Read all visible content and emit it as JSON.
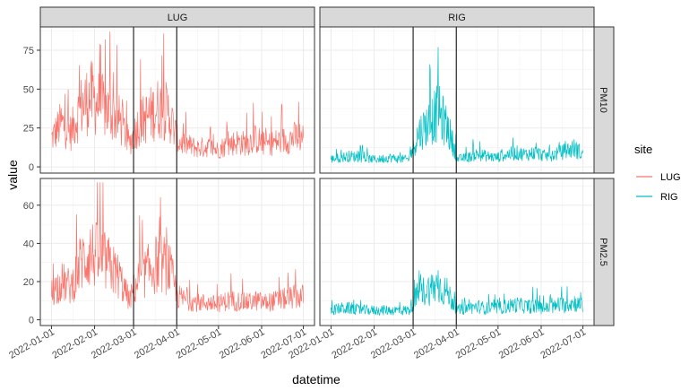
{
  "chart_data": {
    "type": "line",
    "layout": "facet_grid (rows: pollutant, cols: site)",
    "xlabel": "datetime",
    "ylabel": "value",
    "x_ticks": [
      "2022-01-01",
      "2022-02-01",
      "2022-03-01",
      "2022-04-01",
      "2022-05-01",
      "2022-06-01",
      "2022-07-01"
    ],
    "xlim": [
      "2021-12-24",
      "2022-07-09"
    ],
    "vertical_markers": [
      "2022-03-01",
      "2022-04-01"
    ],
    "column_strips": [
      "LUG",
      "RIG"
    ],
    "row_strips": [
      "PM10",
      "PM2.5"
    ],
    "legend": {
      "title": "site",
      "position": "right",
      "entries": [
        {
          "label": "LUG",
          "color": "#F8766D"
        },
        {
          "label": "RIG",
          "color": "#00BFC4"
        }
      ]
    },
    "rows": [
      {
        "name": "PM10",
        "ylim": [
          -4,
          90
        ],
        "yticks": [
          0,
          25,
          50,
          75
        ]
      },
      {
        "name": "PM2.5",
        "ylim": [
          -3,
          74
        ],
        "yticks": [
          0,
          20,
          40,
          60
        ]
      }
    ],
    "series": [
      {
        "name": "LUG",
        "facet": "PM10",
        "color": "#F8766D",
        "x": [
          "2022-01-01",
          "2022-01-08",
          "2022-01-15",
          "2022-01-22",
          "2022-01-29",
          "2022-02-05",
          "2022-02-12",
          "2022-02-19",
          "2022-02-26",
          "2022-03-05",
          "2022-03-12",
          "2022-03-19",
          "2022-03-26",
          "2022-04-02",
          "2022-04-09",
          "2022-04-16",
          "2022-04-23",
          "2022-04-30",
          "2022-05-07",
          "2022-05-14",
          "2022-05-21",
          "2022-05-28",
          "2022-06-04",
          "2022-06-11",
          "2022-06-18",
          "2022-06-25",
          "2022-07-01"
        ],
        "values": [
          18,
          28,
          22,
          38,
          45,
          40,
          35,
          30,
          15,
          28,
          33,
          38,
          35,
          16,
          14,
          12,
          13,
          11,
          14,
          16,
          15,
          18,
          14,
          16,
          17,
          19,
          20
        ],
        "peak": 87
      },
      {
        "name": "RIG",
        "facet": "PM10",
        "color": "#00BFC4",
        "x": [
          "2022-01-01",
          "2022-01-08",
          "2022-01-15",
          "2022-01-22",
          "2022-01-29",
          "2022-02-05",
          "2022-02-12",
          "2022-02-19",
          "2022-02-26",
          "2022-03-05",
          "2022-03-12",
          "2022-03-19",
          "2022-03-26",
          "2022-04-02",
          "2022-04-09",
          "2022-04-16",
          "2022-04-23",
          "2022-04-30",
          "2022-05-07",
          "2022-05-14",
          "2022-05-21",
          "2022-05-28",
          "2022-06-04",
          "2022-06-11",
          "2022-06-18",
          "2022-06-25",
          "2022-07-01"
        ],
        "values": [
          5,
          6,
          7,
          6,
          5,
          5,
          6,
          5,
          5,
          22,
          28,
          35,
          25,
          5,
          6,
          8,
          7,
          6,
          8,
          9,
          8,
          9,
          7,
          8,
          10,
          12,
          8
        ],
        "peak": 77
      },
      {
        "name": "LUG",
        "facet": "PM2.5",
        "color": "#F8766D",
        "x": [
          "2022-01-01",
          "2022-01-08",
          "2022-01-15",
          "2022-01-22",
          "2022-01-29",
          "2022-02-05",
          "2022-02-12",
          "2022-02-19",
          "2022-02-26",
          "2022-03-05",
          "2022-03-12",
          "2022-03-19",
          "2022-03-26",
          "2022-04-02",
          "2022-04-09",
          "2022-04-16",
          "2022-04-23",
          "2022-04-30",
          "2022-05-07",
          "2022-05-14",
          "2022-05-21",
          "2022-05-28",
          "2022-06-04",
          "2022-06-11",
          "2022-06-18",
          "2022-06-25",
          "2022-07-01"
        ],
        "values": [
          14,
          20,
          17,
          30,
          35,
          32,
          28,
          22,
          10,
          22,
          26,
          30,
          28,
          12,
          10,
          9,
          9,
          8,
          10,
          10,
          9,
          10,
          9,
          10,
          11,
          12,
          12
        ],
        "peak": 72
      },
      {
        "name": "RIG",
        "facet": "PM2.5",
        "color": "#00BFC4",
        "x": [
          "2022-01-01",
          "2022-01-08",
          "2022-01-15",
          "2022-01-22",
          "2022-01-29",
          "2022-02-05",
          "2022-02-12",
          "2022-02-19",
          "2022-02-26",
          "2022-03-05",
          "2022-03-12",
          "2022-03-19",
          "2022-03-26",
          "2022-04-02",
          "2022-04-09",
          "2022-04-16",
          "2022-04-23",
          "2022-04-30",
          "2022-05-07",
          "2022-05-14",
          "2022-05-21",
          "2022-05-28",
          "2022-06-04",
          "2022-06-11",
          "2022-06-18",
          "2022-06-25",
          "2022-07-01"
        ],
        "values": [
          5,
          6,
          6,
          5,
          5,
          5,
          5,
          5,
          5,
          14,
          16,
          18,
          14,
          5,
          6,
          7,
          6,
          6,
          7,
          8,
          7,
          7,
          6,
          7,
          8,
          9,
          7
        ],
        "peak": 26
      }
    ]
  }
}
